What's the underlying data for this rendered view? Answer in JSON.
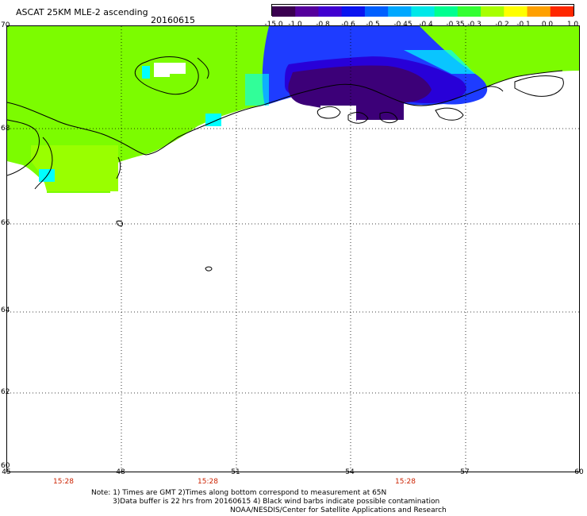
{
  "header": {
    "title": "ASCAT 25KM MLE-2 ascending",
    "date": "20160615"
  },
  "colorbar": {
    "labels": [
      "-15.0",
      "-1.0",
      "-0.8",
      "-0.6",
      "-0.5",
      "-0.45",
      "-0.4",
      "-0.35",
      "-0.3",
      "-0.2",
      "-0.1",
      "0.0",
      "1.0"
    ],
    "colors": [
      "#3a0050",
      "#55009c",
      "#4000d0",
      "#0a14f0",
      "#0060ff",
      "#00a8ff",
      "#00e8e8",
      "#00ff90",
      "#33ff33",
      "#a8ff00",
      "#ffff00",
      "#ffa000",
      "#ff2800"
    ]
  },
  "map": {
    "lat_labels": [
      "70",
      "68",
      "66",
      "64",
      "62",
      "60"
    ],
    "lon_labels": [
      "45",
      "48",
      "51",
      "54",
      "57",
      "60"
    ],
    "times": [
      "15:28",
      "15:28",
      "15:28"
    ],
    "colors": {
      "green": "#7cfc00",
      "lime": "#99ff00",
      "blue": "#1e3cff",
      "dblue": "#2800d8",
      "purple": "#3c0078",
      "cyan": "#00ffff"
    }
  },
  "notes": {
    "line1": "Note: 1) Times are GMT 2)Times along bottom correspond to measurement at 65N",
    "line2": "3)Data buffer is 22 hrs from 20160615 4) Black wind barbs indicate possible contamination",
    "line3": "NOAA/NESDIS/Center for Satellite Applications and Research"
  }
}
